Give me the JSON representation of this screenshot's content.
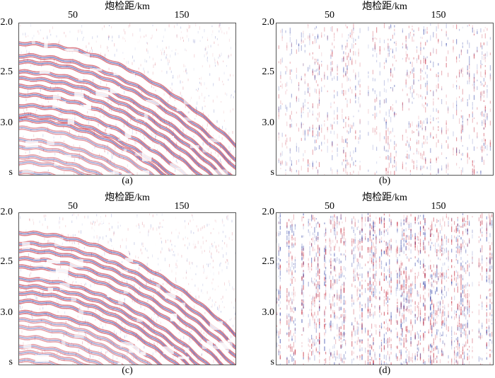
{
  "panels": [
    {
      "id": "a",
      "x_title": "炮检距/km",
      "x_ticks": [
        50,
        150
      ],
      "y_ticks": [
        "2.0",
        "2.5",
        "3.0",
        "s"
      ],
      "caption": "(a)",
      "content": "seismic-gather-original"
    },
    {
      "id": "b",
      "x_title": "炮检距/km",
      "x_ticks": [
        50,
        150
      ],
      "y_ticks": [
        "2.0",
        "2.5",
        "3.0",
        "s"
      ],
      "caption": "(b)",
      "content": "sparse-noise"
    },
    {
      "id": "c",
      "x_title": "炮检距/km",
      "x_ticks": [
        50,
        150
      ],
      "y_ticks": [
        "2.0",
        "2.5",
        "3.0",
        "s"
      ],
      "caption": "(c)",
      "content": "seismic-gather-processed"
    },
    {
      "id": "d",
      "x_title": "炮检距/km",
      "x_ticks": [
        50,
        150
      ],
      "y_ticks": [
        "2.0",
        "2.5",
        "3.0",
        "s"
      ],
      "caption": "(d)",
      "content": "dense-noise"
    }
  ],
  "colors": {
    "positive": "#c0152a",
    "negative": "#1d2f9e",
    "frame": "#555555"
  }
}
